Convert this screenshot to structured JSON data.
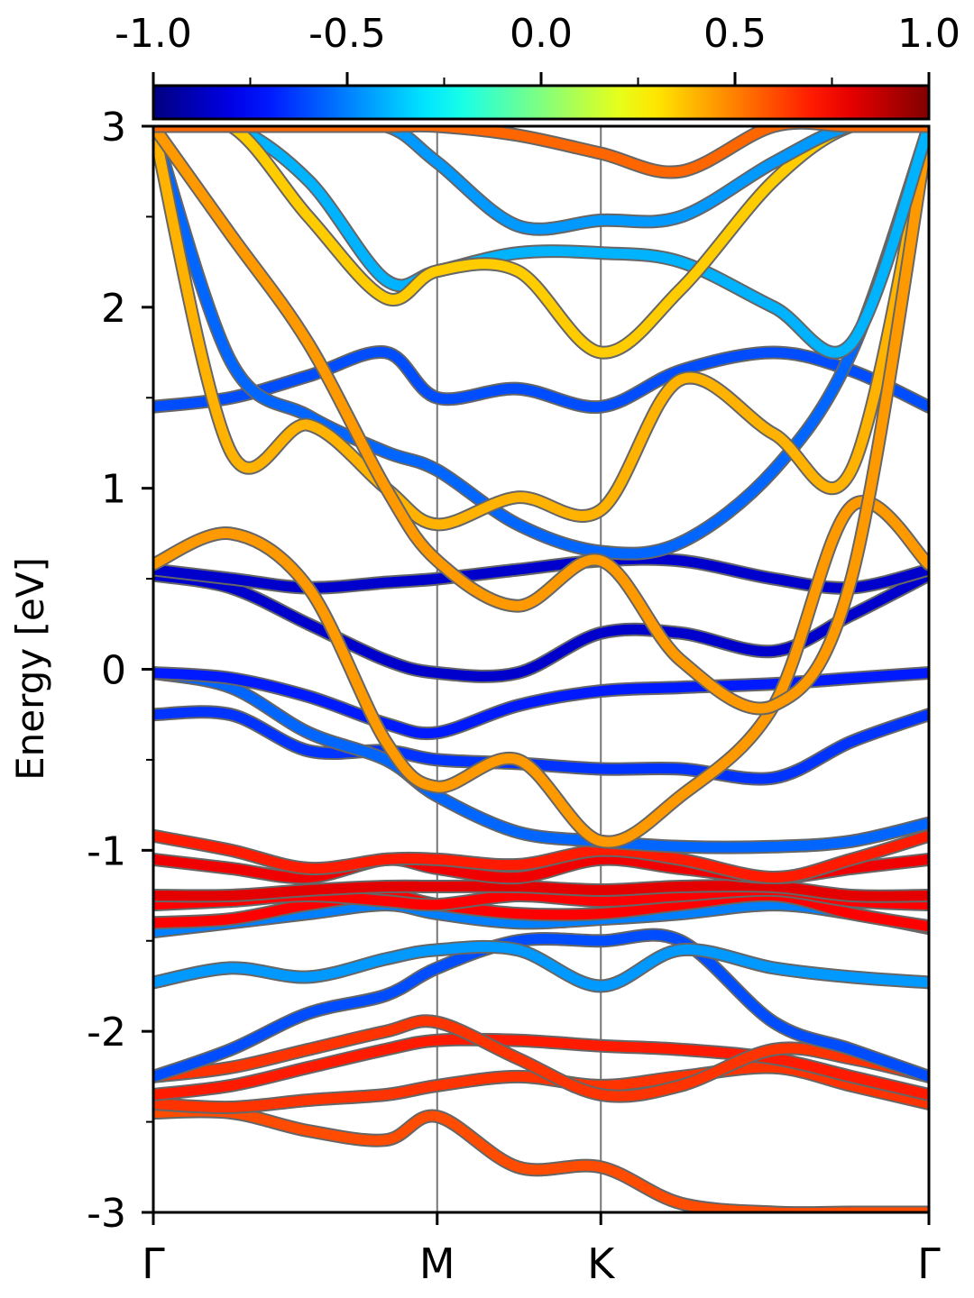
{
  "chart_data": {
    "type": "line",
    "title": "",
    "ylabel": "Energy [eV]",
    "xlabel": "",
    "ylim": [
      -3,
      3
    ],
    "y_ticks": [
      "3",
      "2",
      "1",
      "0",
      "-1",
      "-2",
      "-3"
    ],
    "x_ticks": [
      "Γ",
      "M",
      "K",
      "Γ"
    ],
    "kpath_positions": [
      0,
      0.366,
      0.577,
      1.0
    ],
    "colorbar": {
      "colormap": "jet",
      "range": [
        -1.0,
        1.0
      ],
      "tick_labels": [
        "-1.0",
        "-0.5",
        "0.0",
        "0.5",
        "1.0"
      ]
    },
    "x_sample": [
      0,
      0.1,
      0.2,
      0.3,
      0.366,
      0.47,
      0.577,
      0.68,
      0.8,
      0.9,
      1.0
    ],
    "series": [
      {
        "values": [
          -2.45,
          -2.45,
          -2.55,
          -2.6,
          -2.47,
          -2.75,
          -2.75,
          -2.95,
          -3.0,
          -3.0,
          -3.0
        ],
        "c": 0.6
      },
      {
        "values": [
          -2.4,
          -2.42,
          -2.38,
          -2.35,
          -2.3,
          -2.25,
          -2.3,
          -2.25,
          -2.2,
          -2.3,
          -2.4
        ],
        "c": 0.65
      },
      {
        "values": [
          -2.35,
          -2.3,
          -2.2,
          -2.1,
          -2.05,
          -2.05,
          -2.08,
          -2.1,
          -2.15,
          -2.25,
          -2.35
        ],
        "c": 0.7
      },
      {
        "values": [
          -2.25,
          -2.2,
          -2.1,
          -2.0,
          -1.95,
          -2.15,
          -2.35,
          -2.3,
          -2.1,
          -2.15,
          -2.25
        ],
        "c": 0.65
      },
      {
        "values": [
          -2.25,
          -2.1,
          -1.9,
          -1.8,
          -1.65,
          -1.5,
          -1.5,
          -1.5,
          -1.95,
          -2.1,
          -2.25
        ],
        "c": -0.6
      },
      {
        "values": [
          -1.73,
          -1.65,
          -1.7,
          -1.6,
          -1.55,
          -1.55,
          -1.75,
          -1.55,
          -1.65,
          -1.7,
          -1.73
        ],
        "c": -0.45
      },
      {
        "values": [
          -1.45,
          -1.4,
          -1.35,
          -1.3,
          -1.35,
          -1.4,
          -1.38,
          -1.35,
          -1.3,
          -1.35,
          -1.43
        ],
        "c": -0.5
      },
      {
        "values": [
          -1.4,
          -1.38,
          -1.3,
          -1.25,
          -1.3,
          -1.35,
          -1.35,
          -1.3,
          -1.25,
          -1.35,
          -1.42
        ],
        "c": 0.75
      },
      {
        "values": [
          -1.3,
          -1.28,
          -1.25,
          -1.28,
          -1.3,
          -1.25,
          -1.28,
          -1.25,
          -1.22,
          -1.28,
          -1.3
        ],
        "c": 0.75
      },
      {
        "values": [
          -1.25,
          -1.25,
          -1.22,
          -1.2,
          -1.2,
          -1.2,
          -1.22,
          -1.2,
          -1.2,
          -1.25,
          -1.25
        ],
        "c": 0.8
      },
      {
        "values": [
          -1.05,
          -1.1,
          -1.15,
          -1.05,
          -1.1,
          -1.15,
          -1.05,
          -1.1,
          -1.15,
          -1.1,
          -1.05
        ],
        "c": 0.78
      },
      {
        "values": [
          -0.92,
          -1.0,
          -1.1,
          -1.05,
          -1.05,
          -1.08,
          -1.0,
          -1.05,
          -1.15,
          -1.05,
          -0.92
        ],
        "c": 0.7
      },
      {
        "values": [
          -0.25,
          -0.25,
          -0.45,
          -0.45,
          -0.5,
          -0.52,
          -0.55,
          -0.55,
          -0.6,
          -0.4,
          -0.25
        ],
        "c": -0.65
      },
      {
        "values": [
          -0.02,
          -0.1,
          -0.35,
          -0.5,
          -0.7,
          -0.9,
          -0.95,
          -0.98,
          -0.98,
          -0.95,
          -0.85
        ],
        "c": -0.55
      },
      {
        "values": [
          -0.02,
          -0.05,
          -0.15,
          -0.3,
          -0.35,
          -0.2,
          -0.12,
          -0.1,
          -0.08,
          -0.05,
          -0.02
        ],
        "c": -0.7
      },
      {
        "values": [
          0.52,
          0.45,
          0.25,
          0.05,
          -0.02,
          -0.02,
          0.2,
          0.2,
          0.1,
          0.3,
          0.52
        ],
        "c": -0.85
      },
      {
        "values": [
          0.55,
          0.5,
          0.45,
          0.48,
          0.5,
          0.55,
          0.6,
          0.6,
          0.5,
          0.45,
          0.55
        ],
        "c": -0.85
      },
      {
        "values": [
          0.58,
          0.75,
          0.45,
          -0.4,
          -0.65,
          -0.5,
          -0.95,
          -0.7,
          -0.2,
          0.9,
          0.58
        ],
        "c": 0.45
      },
      {
        "values": [
          1.45,
          1.5,
          1.62,
          1.75,
          1.5,
          1.55,
          1.45,
          1.65,
          1.75,
          1.65,
          1.45
        ],
        "c": -0.6
      },
      {
        "values": [
          3.0,
          1.7,
          1.4,
          1.2,
          1.1,
          0.8,
          0.65,
          0.7,
          1.1,
          1.75,
          3.0
        ],
        "c": -0.55
      },
      {
        "values": [
          3.0,
          1.2,
          1.35,
          1.0,
          0.8,
          0.95,
          0.88,
          1.6,
          1.3,
          1.1,
          3.0
        ],
        "c": 0.4
      },
      {
        "values": [
          3.0,
          2.4,
          1.8,
          1.0,
          0.6,
          0.35,
          0.6,
          0.05,
          -0.2,
          0.5,
          3.0
        ],
        "c": 0.45
      },
      {
        "values": [
          3.0,
          3.0,
          2.7,
          2.15,
          2.2,
          2.3,
          2.3,
          2.25,
          2.0,
          1.8,
          3.0
        ],
        "c": -0.4
      },
      {
        "values": [
          3.0,
          3.0,
          2.5,
          2.05,
          2.2,
          2.2,
          1.75,
          2.1,
          2.7,
          3.0,
          3.0
        ],
        "c": 0.35
      },
      {
        "values": [
          3.0,
          3.0,
          3.0,
          3.0,
          2.8,
          2.45,
          2.48,
          2.5,
          2.8,
          3.0,
          3.0
        ],
        "c": -0.45
      },
      {
        "values": [
          3.0,
          3.0,
          3.0,
          3.0,
          3.0,
          2.95,
          2.85,
          2.75,
          3.0,
          3.0,
          3.0
        ],
        "c": 0.55
      }
    ]
  }
}
